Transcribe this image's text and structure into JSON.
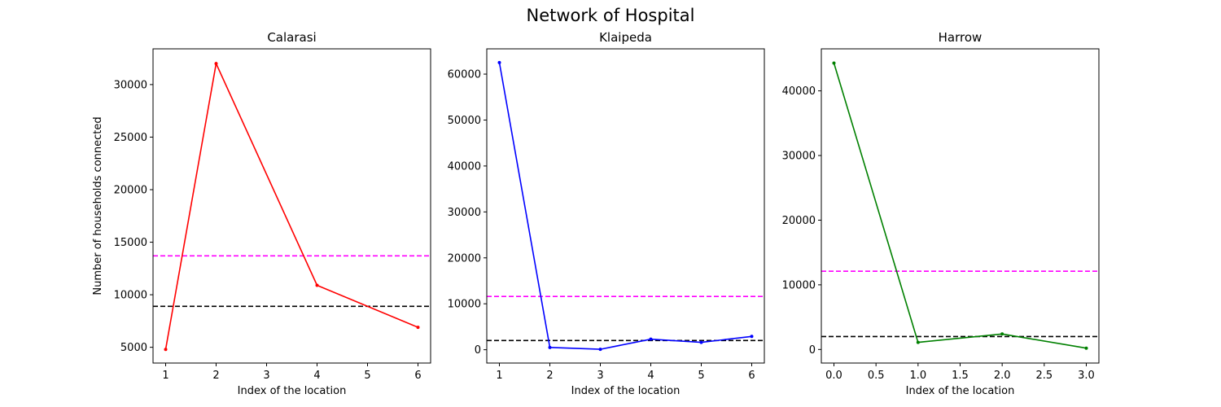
{
  "figure": {
    "title": "Network of Hospital"
  },
  "chart_data": [
    {
      "type": "line",
      "title": "Calarasi",
      "xlabel": "Index of the location",
      "ylabel": "Number of households connected",
      "xlim": [
        0.75,
        6.25
      ],
      "ylim": [
        3500,
        33400
      ],
      "xticks": [
        1,
        2,
        3,
        4,
        5,
        6
      ],
      "xtick_labels": [
        "1",
        "2",
        "3",
        "4",
        "5",
        "6"
      ],
      "yticks": [
        5000,
        10000,
        15000,
        20000,
        25000,
        30000
      ],
      "ytick_labels": [
        "5000",
        "10000",
        "15000",
        "20000",
        "25000",
        "30000"
      ],
      "series": [
        {
          "x": [
            1,
            2,
            4,
            6
          ],
          "y": [
            4800,
            32000,
            10900,
            6900
          ],
          "color": "#ff0000"
        }
      ],
      "hlines": [
        {
          "y": 13700,
          "color": "#ff00ff",
          "style": "dashed"
        },
        {
          "y": 8900,
          "color": "#000000",
          "style": "dashed"
        }
      ],
      "grid": false
    },
    {
      "type": "line",
      "title": "Klaipeda",
      "xlabel": "Index of the location",
      "ylabel": "",
      "xlim": [
        0.75,
        6.25
      ],
      "ylim": [
        -2900,
        65500
      ],
      "xticks": [
        1,
        2,
        3,
        4,
        5,
        6
      ],
      "xtick_labels": [
        "1",
        "2",
        "3",
        "4",
        "5",
        "6"
      ],
      "yticks": [
        0,
        10000,
        20000,
        30000,
        40000,
        50000,
        60000
      ],
      "ytick_labels": [
        "0",
        "10000",
        "20000",
        "30000",
        "40000",
        "50000",
        "60000"
      ],
      "series": [
        {
          "x": [
            1,
            2,
            3,
            4,
            5,
            6
          ],
          "y": [
            62500,
            500,
            100,
            2300,
            1600,
            2900
          ],
          "color": "#0000ff"
        }
      ],
      "hlines": [
        {
          "y": 11600,
          "color": "#ff00ff",
          "style": "dashed"
        },
        {
          "y": 2000,
          "color": "#000000",
          "style": "dashed"
        }
      ],
      "grid": false
    },
    {
      "type": "line",
      "title": "Harrow",
      "xlabel": "Index of the location",
      "ylabel": "",
      "xlim": [
        -0.15,
        3.15
      ],
      "ylim": [
        -2100,
        46500
      ],
      "xticks": [
        0,
        0.5,
        1,
        1.5,
        2,
        2.5,
        3
      ],
      "xtick_labels": [
        "0.0",
        "0.5",
        "1.0",
        "1.5",
        "2.0",
        "2.5",
        "3.0"
      ],
      "yticks": [
        0,
        10000,
        20000,
        30000,
        40000
      ],
      "ytick_labels": [
        "0",
        "10000",
        "20000",
        "30000",
        "40000"
      ],
      "series": [
        {
          "x": [
            0,
            1,
            2,
            3
          ],
          "y": [
            44300,
            1100,
            2400,
            200
          ],
          "color": "#008000"
        }
      ],
      "hlines": [
        {
          "y": 12100,
          "color": "#ff00ff",
          "style": "dashed"
        },
        {
          "y": 2000,
          "color": "#000000",
          "style": "dashed"
        }
      ],
      "grid": false
    }
  ]
}
